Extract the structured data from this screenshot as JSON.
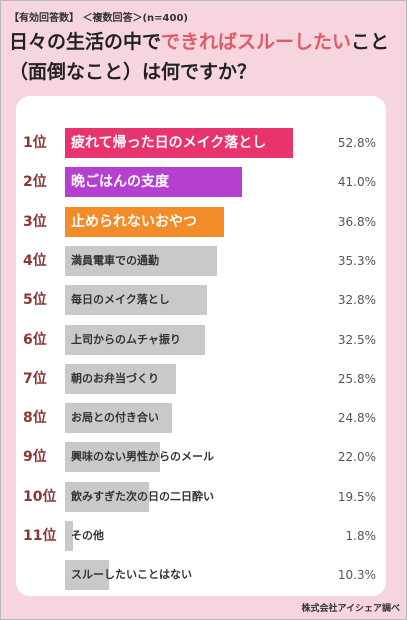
{
  "header": {
    "meta": "【有効回答数】 ＜複数回答＞(n=400)",
    "title_line1_part1": "日々の生活の中で",
    "title_line1_accent": "できればスルーしたい",
    "title_line1_part2": "こと",
    "title_line2": "（面倒なこと）は何ですか？"
  },
  "footer": {
    "source": "株式会社アイシェア調べ"
  },
  "colors": {
    "background": "#f6d5df",
    "rank1": "#e8336d",
    "rank2": "#b43fd0",
    "rank3": "#f28c28",
    "other": "#c9c9c9",
    "accent_text": "#e05a67"
  },
  "chart_data": {
    "type": "bar",
    "orientation": "horizontal",
    "xlim": [
      0,
      60
    ],
    "categories": [
      "疲れて帰った日のメイク落とし",
      "晩ごはんの支度",
      "止められないおやつ",
      "満員電車での通勤",
      "毎日のメイク落とし",
      "上司からのムチャ振り",
      "朝のお弁当づくり",
      "お局との付き合い",
      "興味のない男性からのメール",
      "飲みすぎた次の日の二日酔い",
      "その他",
      "スルーしたいことはない"
    ],
    "ranks": [
      "1位",
      "2位",
      "3位",
      "4位",
      "5位",
      "6位",
      "7位",
      "8位",
      "9位",
      "10位",
      "11位",
      ""
    ],
    "values": [
      52.8,
      41.0,
      36.8,
      35.3,
      32.8,
      32.5,
      25.8,
      24.8,
      22.0,
      19.5,
      1.8,
      10.3
    ],
    "value_labels": [
      "52.8%",
      "41.0%",
      "36.8%",
      "35.3%",
      "32.8%",
      "32.5%",
      "25.8%",
      "24.8%",
      "22.0%",
      "19.5%",
      "1.8%",
      "10.3%"
    ]
  }
}
